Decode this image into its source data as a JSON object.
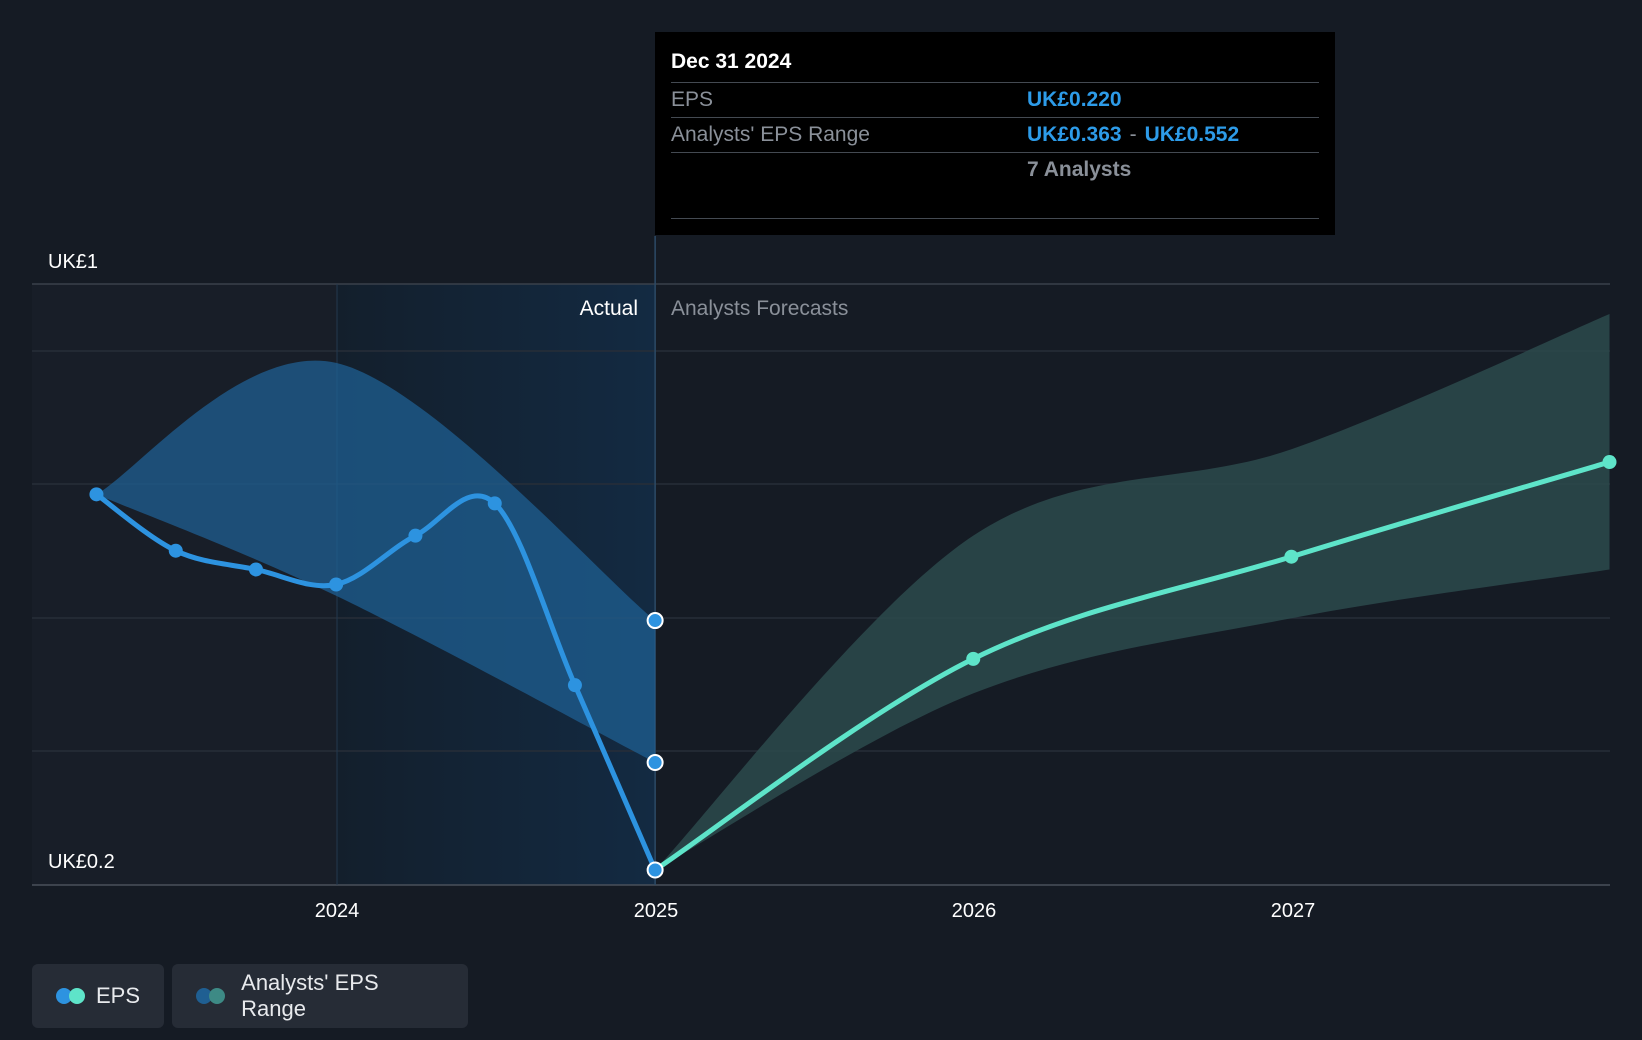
{
  "tooltip": {
    "date": "Dec 31 2024",
    "eps_label": "EPS",
    "eps_value": "UK£0.220",
    "range_label": "Analysts' EPS Range",
    "range_low": "UK£0.363",
    "range_sep": "-",
    "range_high": "UK£0.552",
    "analysts": "7 Analysts"
  },
  "labels": {
    "actual": "Actual",
    "forecasts": "Analysts Forecasts"
  },
  "legend": {
    "eps": "EPS",
    "range": "Analysts' EPS Range"
  },
  "colors": {
    "background": "#151b24",
    "actual_line": "#2d93e0",
    "actual_range": "#1f5f92",
    "forecast_line": "#5ee4c9",
    "forecast_range": "#2b4a4c"
  },
  "chart_data": {
    "type": "line",
    "y_tick_labels": [
      "UK£1",
      "UK£0.2"
    ],
    "ylim": [
      0.2,
      1.0
    ],
    "x_tick_labels": [
      "2024",
      "2025",
      "2026",
      "2027"
    ],
    "grid": true,
    "legend_placement": "bottom-left",
    "series": [
      {
        "name": "EPS",
        "segment": "actual",
        "points": [
          {
            "x": "2023-03-31",
            "y": 0.72
          },
          {
            "x": "2023-06-30",
            "y": 0.645
          },
          {
            "x": "2023-09-30",
            "y": 0.62
          },
          {
            "x": "2023-12-31",
            "y": 0.6
          },
          {
            "x": "2024-03-31",
            "y": 0.665
          },
          {
            "x": "2024-06-30",
            "y": 0.708
          },
          {
            "x": "2024-09-30",
            "y": 0.466
          },
          {
            "x": "2024-12-31",
            "y": 0.22
          }
        ]
      },
      {
        "name": "EPS",
        "segment": "forecast",
        "points": [
          {
            "x": "2024-12-31",
            "y": 0.22
          },
          {
            "x": "2025-12-31",
            "y": 0.501
          },
          {
            "x": "2026-12-31",
            "y": 0.637
          },
          {
            "x": "2027-12-31",
            "y": 0.763
          }
        ]
      },
      {
        "name": "Analysts' EPS Range",
        "segment": "actual",
        "high": [
          {
            "x": "2023-03-31",
            "y": 0.72
          },
          {
            "x": "2023-12-31",
            "y": 0.895
          },
          {
            "x": "2024-12-31",
            "y": 0.552
          }
        ],
        "low": [
          {
            "x": "2023-03-31",
            "y": 0.72
          },
          {
            "x": "2023-12-31",
            "y": 0.585
          },
          {
            "x": "2024-12-31",
            "y": 0.363
          }
        ]
      },
      {
        "name": "Analysts' EPS Range",
        "segment": "forecast",
        "high": [
          {
            "x": "2024-12-31",
            "y": 0.22
          },
          {
            "x": "2025-12-31",
            "y": 0.665
          },
          {
            "x": "2026-12-31",
            "y": 0.78
          },
          {
            "x": "2027-12-31",
            "y": 0.96
          }
        ],
        "low": [
          {
            "x": "2024-12-31",
            "y": 0.22
          },
          {
            "x": "2025-12-31",
            "y": 0.455
          },
          {
            "x": "2026-12-31",
            "y": 0.555
          },
          {
            "x": "2027-12-31",
            "y": 0.62
          }
        ]
      }
    ]
  }
}
